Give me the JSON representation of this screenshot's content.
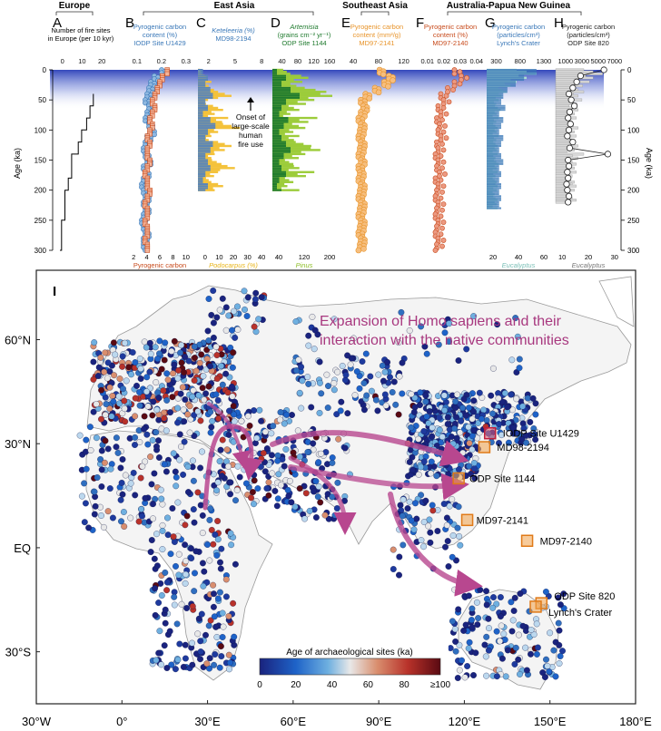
{
  "region_labels": {
    "europe": "Europe",
    "east_asia": "East Asia",
    "southeast_asia": "Southeast Asia",
    "australia_png": "Australia-Papua New Guinea"
  },
  "age_axis": {
    "label": "Age (ka)",
    "ticks": [
      "0",
      "50",
      "100",
      "150",
      "200",
      "250",
      "300"
    ],
    "range": [
      0,
      300
    ]
  },
  "human_fire_note": [
    "Onset of",
    "large-scale",
    "human",
    "fire use"
  ],
  "panels": {
    "A": {
      "letter": "A",
      "top_title": [
        "Number of fire sites",
        "in Europe (per 10 kyr)"
      ],
      "top_ticks": [
        "0",
        "10",
        "20"
      ],
      "top_color": "#000000"
    },
    "B": {
      "letter": "B",
      "top_title": [
        "Pyrogenic carbon",
        "content (%)",
        "IODP Site U1429"
      ],
      "top_ticks": [
        "0.1",
        "0.2",
        "0.3"
      ],
      "top_color": "#3a78b8",
      "bottom_ticks": [
        "2",
        "4",
        "6",
        "8",
        "10"
      ],
      "bottom_title": [
        "Pyrogenic carbon",
        "MAR (mg/cm²/kyr)",
        "IODP Site U1429"
      ],
      "bottom_color": "#c84b1c"
    },
    "C": {
      "letter": "C",
      "top_title": [
        "Keteleeria (%)",
        "MD98-2194"
      ],
      "top_ticks": [
        "2",
        "5",
        "8"
      ],
      "top_color": "#3a78b8",
      "bottom_ticks": [
        "0",
        "10",
        "20",
        "30",
        "40"
      ],
      "bottom_title": [
        "Podocarpus (%)",
        "MD98-2194"
      ],
      "bottom_color": "#e8b418"
    },
    "D": {
      "letter": "D",
      "top_title": [
        "Artemisia",
        "(grains cm⁻² yr⁻¹)",
        "ODP Site 1144"
      ],
      "top_ticks": [
        "40",
        "80",
        "120",
        "160"
      ],
      "top_color": "#1f7a2e",
      "bottom_ticks": [
        "40",
        "120",
        "200"
      ],
      "bottom_title": [
        "Pinus",
        "(grains cm⁻² yr⁻¹)",
        "ODP Site 1144"
      ],
      "bottom_color": "#8fbf2a"
    },
    "E": {
      "letter": "E",
      "top_title": [
        "Pyrogenic carbon",
        "content (mm²/g)",
        "MD97-2141"
      ],
      "top_ticks": [
        "40",
        "80",
        "120"
      ],
      "top_color": "#e8942a"
    },
    "F": {
      "letter": "F",
      "top_title": [
        "Pyrogenic carbon",
        "content (%)",
        "MD97-2140"
      ],
      "top_ticks": [
        "0.01",
        "0.02",
        "0.03",
        "0.04"
      ],
      "top_color": "#c84b1c"
    },
    "G": {
      "letter": "G",
      "top_title": [
        "Pyrogenic carbon",
        "(particles/cm³)",
        "Lynch's Crater"
      ],
      "top_ticks": [
        "300",
        "800",
        "1300"
      ],
      "top_color": "#3a78b8",
      "bottom_ticks": [
        "20",
        "40",
        "60"
      ],
      "bottom_title": [
        "Eucalyptus",
        "abundance (%)",
        "Lynch's Crater"
      ],
      "bottom_color": "#7cc0b8"
    },
    "H": {
      "letter": "H",
      "top_title": [
        "Pyrogenic carbon",
        "(particles/cm³)",
        "ODP Site 820"
      ],
      "top_ticks": [
        "1000",
        "3000",
        "5000",
        "7000"
      ],
      "top_color": "#222222",
      "bottom_ticks": [
        "10",
        "20",
        "30"
      ],
      "bottom_title": [
        "Eucalyptus",
        "abundance (%)",
        "ODP Site 820"
      ],
      "bottom_color": "#777777"
    }
  },
  "map": {
    "letter": "I",
    "headline": [
      "Expansion of Homo sapiens and their",
      "interaction with the native communities"
    ],
    "headline_color": "#a8387f",
    "lat_labels": [
      "60°N",
      "30°N",
      "EQ",
      "30°S"
    ],
    "lon_labels": [
      "30°W",
      "0°",
      "30°E",
      "60°E",
      "90°E",
      "120°E",
      "150°E",
      "180°E"
    ],
    "sites": [
      {
        "name": "IODP Site U1429",
        "lon": 129,
        "lat": 33,
        "color": "#e0506a"
      },
      {
        "name": "MD98-2194",
        "lon": 127,
        "lat": 29,
        "color": "#f0a048"
      },
      {
        "name": "ODP Site 1144",
        "lon": 118,
        "lat": 20,
        "color": "#f0a048"
      },
      {
        "name": "MD97-2141",
        "lon": 121,
        "lat": 8,
        "color": "#f0a048"
      },
      {
        "name": "MD97-2140",
        "lon": 142,
        "lat": 2,
        "color": "#f0a048"
      },
      {
        "name": "ODP Site 820",
        "lon": 147,
        "lat": -16,
        "color": "#f0a048"
      },
      {
        "name": "Lynch's Crater",
        "lon": 145,
        "lat": -17,
        "color": "#f0a048"
      }
    ],
    "colorbar": {
      "title": "Age of archaeological sites (ka)",
      "ticks": [
        "0",
        "20",
        "40",
        "60",
        "80",
        "≥100"
      ],
      "colors": [
        "#1a237e",
        "#1e63c8",
        "#6fb0e0",
        "#e8e8e8",
        "#d98e6e",
        "#b8322a",
        "#5a0a12"
      ]
    }
  },
  "chart_data": [
    {
      "type": "line",
      "title": "Number of fire sites in Europe (per 10 kyr)",
      "xlabel": "Number of fire sites",
      "ylabel": "Age (ka)",
      "ylim": [
        0,
        300
      ],
      "xlim": [
        0,
        25
      ],
      "series": [
        {
          "name": "Number of fire sites in Europe (per 10 kyr)",
          "x": [
            0,
            1,
            1,
            3,
            3,
            5,
            5,
            7,
            7,
            11,
            11,
            13,
            13,
            16,
            16,
            18,
            18,
            20,
            20
          ],
          "y": [
            300,
            300,
            250,
            250,
            200,
            200,
            180,
            180,
            140,
            140,
            120,
            120,
            100,
            100,
            80,
            80,
            60,
            60,
            40
          ]
        }
      ]
    },
    {
      "type": "scatter",
      "title": "Pyrogenic carbon content (%) IODP Site U1429",
      "ylabel": "Age (ka)",
      "ylim": [
        0,
        300
      ],
      "series": [
        {
          "name": "Pyrogenic carbon content (%)",
          "x": [
            0.22,
            0.18,
            0.16,
            0.15,
            0.14,
            0.13,
            0.15,
            0.14,
            0.13,
            0.15,
            0.16,
            0.14,
            0.13,
            0.12,
            0.13,
            0.14,
            0.12,
            0.13,
            0.12,
            0.11,
            0.12,
            0.13,
            0.12,
            0.13,
            0.12,
            0.11,
            0.12,
            0.13,
            0.12,
            0.12,
            0.13
          ],
          "y": [
            0,
            10,
            20,
            30,
            40,
            50,
            60,
            70,
            80,
            90,
            100,
            110,
            120,
            130,
            140,
            150,
            160,
            170,
            180,
            190,
            200,
            210,
            220,
            230,
            240,
            250,
            260,
            270,
            280,
            290,
            300
          ]
        },
        {
          "name": "Pyrogenic carbon MAR (mg/cm²/kyr)",
          "x": [
            7,
            6,
            5.5,
            5,
            4.5,
            4,
            4.5,
            4,
            3.5,
            4,
            3.5,
            3,
            3.5,
            3,
            3,
            3.5,
            3,
            2.5,
            3,
            3,
            3.5,
            3,
            2.5,
            3,
            3,
            2.5,
            3,
            3,
            2.5,
            3,
            3
          ],
          "y": [
            0,
            10,
            20,
            30,
            40,
            50,
            60,
            70,
            80,
            90,
            100,
            110,
            120,
            130,
            140,
            150,
            160,
            170,
            180,
            190,
            200,
            210,
            220,
            230,
            240,
            250,
            260,
            270,
            280,
            290,
            300
          ]
        }
      ]
    },
    {
      "type": "bar",
      "title": "Keteleeria (%) / Podocarpus (%) MD98-2194",
      "ylabel": "Age (ka)",
      "ylim": [
        0,
        200
      ],
      "series": [
        {
          "name": "Keteleeria (%)",
          "x": [
            2,
            4,
            3,
            5,
            6,
            3,
            4,
            2,
            5,
            7,
            4,
            3,
            6,
            5,
            3,
            4,
            5,
            3,
            2,
            4,
            3
          ],
          "y": [
            0,
            10,
            20,
            30,
            40,
            50,
            60,
            70,
            80,
            90,
            100,
            110,
            120,
            130,
            140,
            150,
            160,
            170,
            180,
            190,
            200
          ]
        },
        {
          "name": "Podocarpus (%)",
          "x": [
            2,
            5,
            8,
            12,
            20,
            6,
            15,
            10,
            18,
            25,
            12,
            8,
            20,
            16,
            10,
            14,
            22,
            12,
            8,
            15,
            10
          ],
          "y": [
            0,
            10,
            20,
            30,
            40,
            50,
            60,
            70,
            80,
            90,
            100,
            110,
            120,
            130,
            140,
            150,
            160,
            170,
            180,
            190,
            200
          ]
        }
      ]
    },
    {
      "type": "bar",
      "title": "Artemisia / Pinus (grains cm⁻² yr⁻¹) ODP Site 1144",
      "ylabel": "Age (ka)",
      "ylim": [
        0,
        200
      ],
      "series": [
        {
          "name": "Artemisia",
          "x": [
            20,
            60,
            40,
            80,
            120,
            60,
            40,
            30,
            70,
            50,
            30,
            40,
            60,
            80,
            50,
            30,
            40,
            60,
            30,
            20,
            40
          ],
          "y": [
            0,
            10,
            20,
            30,
            40,
            50,
            60,
            70,
            80,
            90,
            100,
            110,
            120,
            130,
            140,
            150,
            160,
            170,
            180,
            190,
            200
          ]
        },
        {
          "name": "Pinus",
          "x": [
            60,
            120,
            100,
            180,
            200,
            140,
            90,
            60,
            150,
            110,
            70,
            90,
            130,
            160,
            110,
            70,
            90,
            140,
            70,
            50,
            90
          ],
          "y": [
            0,
            10,
            20,
            30,
            40,
            50,
            60,
            70,
            80,
            90,
            100,
            110,
            120,
            130,
            140,
            150,
            160,
            170,
            180,
            190,
            200
          ]
        }
      ]
    },
    {
      "type": "scatter",
      "title": "Pyrogenic carbon content (mm²/g) MD97-2141",
      "ylabel": "Age (ka)",
      "ylim": [
        0,
        300
      ],
      "series": [
        {
          "name": "Pyrogenic carbon content (mm²/g)",
          "x": [
            90,
            110,
            100,
            80,
            60,
            50,
            55,
            50,
            45,
            50,
            48,
            45,
            50,
            48,
            45,
            50,
            45,
            48,
            45,
            50,
            48,
            45,
            50,
            48,
            45,
            50,
            48,
            45,
            50,
            48,
            45
          ],
          "y": [
            0,
            10,
            20,
            30,
            40,
            50,
            60,
            70,
            80,
            90,
            100,
            110,
            120,
            130,
            140,
            150,
            160,
            170,
            180,
            190,
            200,
            210,
            220,
            230,
            240,
            250,
            260,
            270,
            280,
            290,
            300
          ]
        }
      ]
    },
    {
      "type": "scatter",
      "title": "Pyrogenic carbon content (%) MD97-2140",
      "ylabel": "Age (ka)",
      "ylim": [
        0,
        300
      ],
      "series": [
        {
          "name": "Pyrogenic carbon content (%)",
          "x": [
            0.03,
            0.035,
            0.03,
            0.025,
            0.02,
            0.022,
            0.018,
            0.02,
            0.017,
            0.019,
            0.018,
            0.02,
            0.017,
            0.018,
            0.016,
            0.018,
            0.017,
            0.019,
            0.016,
            0.018,
            0.017,
            0.016,
            0.018,
            0.017,
            0.016,
            0.018,
            0.017,
            0.016,
            0.018,
            0.017,
            0.016
          ],
          "y": [
            0,
            10,
            20,
            30,
            40,
            50,
            60,
            70,
            80,
            90,
            100,
            110,
            120,
            130,
            140,
            150,
            160,
            170,
            180,
            190,
            200,
            210,
            220,
            230,
            240,
            250,
            260,
            270,
            280,
            290,
            300
          ]
        }
      ]
    },
    {
      "type": "bar",
      "title": "Pyrogenic carbon (particles/cm³) Lynch's Crater",
      "ylabel": "Age (ka)",
      "ylim": [
        0,
        230
      ],
      "series": [
        {
          "name": "Pyrogenic carbon (particles/cm³)",
          "x": [
            1200,
            900,
            700,
            500,
            400,
            350,
            450,
            300,
            400,
            350,
            300,
            400,
            350,
            300,
            350,
            400,
            300,
            350,
            300,
            350,
            300,
            350,
            300,
            350
          ],
          "y": [
            0,
            10,
            20,
            30,
            40,
            50,
            60,
            70,
            80,
            90,
            100,
            110,
            120,
            130,
            140,
            150,
            160,
            170,
            180,
            190,
            200,
            210,
            220,
            230
          ]
        },
        {
          "name": "Eucalyptus abundance (%)",
          "x": [
            50,
            40,
            30,
            20,
            15,
            12,
            14,
            10,
            12,
            11,
            10,
            12,
            11,
            10,
            11,
            12,
            10,
            11,
            10,
            11,
            10,
            11,
            10,
            11
          ],
          "y": [
            0,
            10,
            20,
            30,
            40,
            50,
            60,
            70,
            80,
            90,
            100,
            110,
            120,
            130,
            140,
            150,
            160,
            170,
            180,
            190,
            200,
            210,
            220,
            230
          ]
        }
      ]
    },
    {
      "type": "scatter",
      "title": "Pyrogenic carbon (particles/cm³) ODP Site 820",
      "ylabel": "Age (ka)",
      "ylim": [
        0,
        230
      ],
      "series": [
        {
          "name": "Pyrogenic carbon (particles/cm³)",
          "x": [
            6000,
            3000,
            2500,
            2000,
            1500,
            1800,
            2200,
            1600,
            1400,
            1700,
            1500,
            1300,
            2000,
            1600,
            6500,
            1400,
            1500,
            1300,
            1400,
            1200,
            1300,
            1500,
            1400
          ],
          "y": [
            0,
            10,
            20,
            30,
            40,
            50,
            60,
            70,
            80,
            90,
            100,
            110,
            120,
            130,
            140,
            150,
            160,
            170,
            180,
            190,
            200,
            210,
            220
          ]
        },
        {
          "name": "Eucalyptus abundance (%)",
          "x": [
            25,
            20,
            18,
            15,
            12,
            14,
            12,
            10,
            11,
            12,
            10,
            11,
            12,
            10,
            15,
            11,
            10,
            11,
            10,
            11,
            10,
            11,
            10
          ],
          "y": [
            0,
            10,
            20,
            30,
            40,
            50,
            60,
            70,
            80,
            90,
            100,
            110,
            120,
            130,
            140,
            150,
            160,
            170,
            180,
            190,
            200,
            210,
            220
          ]
        }
      ]
    }
  ]
}
